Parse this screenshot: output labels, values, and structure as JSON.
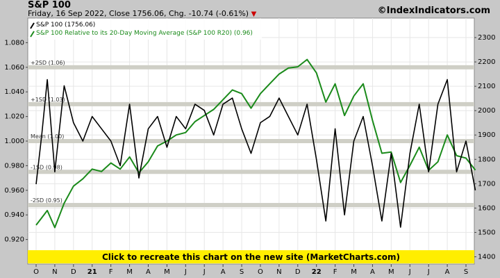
{
  "header": {
    "title": "S&P 100",
    "subtitle": "Friday, 16 Sep 2022, Close 1756.06, Chg. -10.74 (-0.61%)",
    "brand": "©IndexIndicators.com"
  },
  "banner": {
    "label": "Click to recreate this chart on the new site (MarketCharts.com)"
  },
  "colors": {
    "price": "#000000",
    "ratio": "#1a8a1a",
    "band": "#cfcfc6",
    "plot_bg": "#ffffff",
    "banner_bg": "#ffee00",
    "down_arrow": "#cc0000"
  },
  "chart_data": {
    "type": "line",
    "title": "S&P 100",
    "legend": [
      "S&P 100 (1756.06)",
      "S&P 100 Relative to its 20-Day Moving Average (S&P 100 R20) (0.96)"
    ],
    "legend_position": "top-left",
    "x_ticks": [
      "O",
      "N",
      "D",
      "21",
      "F",
      "M",
      "A",
      "M",
      "J",
      "J",
      "A",
      "S",
      "O",
      "N",
      "D",
      "22",
      "F",
      "M",
      "A",
      "M",
      "J",
      "J",
      "A",
      "S"
    ],
    "left_axis": {
      "ylim": [
        0.9,
        1.1
      ],
      "ticks": [
        "0.920",
        "0.940",
        "0.960",
        "0.980",
        "1.000",
        "1.020",
        "1.040",
        "1.060",
        "1.080"
      ]
    },
    "right_axis": {
      "ylim": [
        1370,
        2380
      ],
      "ticks": [
        "1400",
        "1500",
        "1600",
        "1700",
        "1800",
        "1900",
        "2000",
        "2100",
        "2200",
        "2300"
      ]
    },
    "bands": [
      {
        "label": "+2SD (1.06)",
        "value": 1.06
      },
      {
        "label": "+1SD (1.03)",
        "value": 1.03
      },
      {
        "label": "Mean (1.00)",
        "value": 1.0
      },
      {
        "label": "-1SD (0.98)",
        "value": 0.975
      },
      {
        "label": "-2SD (0.95)",
        "value": 0.948
      }
    ],
    "series": [
      {
        "name": "S&P 100 (1756.06)",
        "axis": "right",
        "x": [
          0,
          0.3,
          0.6,
          1,
          1.5,
          2,
          2.5,
          3,
          3.5,
          4,
          4.5,
          5,
          5.5,
          6,
          6.5,
          7,
          7.5,
          8,
          8.5,
          9,
          9.5,
          10,
          10.5,
          11,
          11.5,
          12,
          12.5,
          13,
          13.5,
          14,
          14.5,
          15,
          15.5,
          16,
          16.5,
          17,
          17.5,
          18,
          18.5,
          19,
          19.5,
          20,
          20.5,
          21,
          21.5,
          22,
          22.5,
          23,
          23.5
        ],
        "values": [
          1530,
          1560,
          1590,
          1520,
          1620,
          1690,
          1720,
          1760,
          1750,
          1785,
          1760,
          1810,
          1745,
          1790,
          1855,
          1875,
          1900,
          1910,
          1955,
          1980,
          2005,
          2045,
          2085,
          2070,
          2010,
          2070,
          2110,
          2150,
          2175,
          2180,
          2210,
          2155,
          2035,
          2110,
          1980,
          2060,
          2110,
          1960,
          1825,
          1830,
          1705,
          1775,
          1850,
          1755,
          1790,
          1900,
          1815,
          1805,
          1756
        ]
      },
      {
        "name": "S&P 100 Relative to its 20-Day Moving Average (S&P 100 R20) (0.96)",
        "axis": "left",
        "x": [
          0,
          0.3,
          0.6,
          1,
          1.5,
          2,
          2.5,
          3,
          3.5,
          4,
          4.5,
          5,
          5.5,
          6,
          6.5,
          7,
          7.5,
          8,
          8.5,
          9,
          9.5,
          10,
          10.5,
          11,
          11.5,
          12,
          12.5,
          13,
          13.5,
          14,
          14.5,
          15,
          15.5,
          16,
          16.5,
          17,
          17.5,
          18,
          18.5,
          19,
          19.5,
          20,
          20.5,
          21,
          21.5,
          22,
          22.5,
          23,
          23.5
        ],
        "values": [
          0.965,
          1.005,
          1.05,
          0.975,
          1.045,
          1.015,
          1.0,
          1.02,
          1.01,
          1.0,
          0.98,
          1.03,
          0.97,
          1.01,
          1.02,
          0.995,
          1.02,
          1.01,
          1.03,
          1.025,
          1.005,
          1.03,
          1.035,
          1.01,
          0.99,
          1.015,
          1.02,
          1.035,
          1.02,
          1.005,
          1.03,
          0.985,
          0.935,
          1.01,
          0.94,
          1.0,
          1.02,
          0.98,
          0.935,
          0.99,
          0.93,
          0.99,
          1.03,
          0.975,
          1.03,
          1.05,
          0.975,
          1.0,
          0.96
        ]
      }
    ]
  }
}
